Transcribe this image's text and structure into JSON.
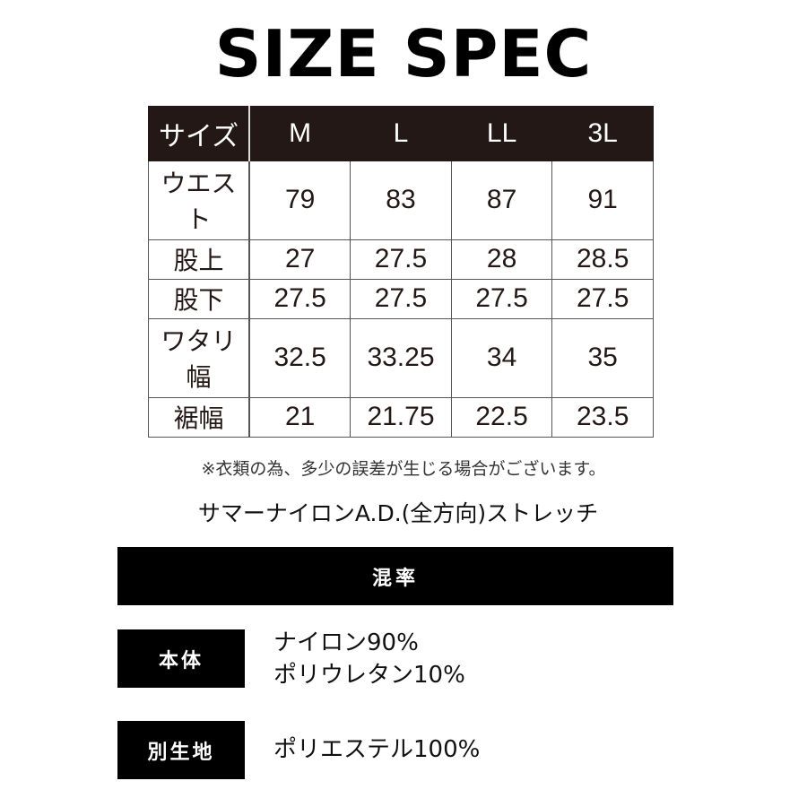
{
  "title": "SIZE SPEC",
  "size_table": {
    "header": [
      "サイズ",
      "M",
      "L",
      "LL",
      "3L"
    ],
    "rows": [
      {
        "label": "ウエスト",
        "values": [
          "79",
          "83",
          "87",
          "91"
        ]
      },
      {
        "label": "股上",
        "values": [
          "27",
          "27.5",
          "28",
          "28.5"
        ]
      },
      {
        "label": "股下",
        "values": [
          "27.5",
          "27.5",
          "27.5",
          "27.5"
        ]
      },
      {
        "label": "ワタリ幅",
        "values": [
          "32.5",
          "33.25",
          "34",
          "35"
        ]
      },
      {
        "label": "裾幅",
        "values": [
          "21",
          "21.75",
          "22.5",
          "23.5"
        ]
      }
    ]
  },
  "note": "※衣類の為、多少の誤差が生じる場合がございます。",
  "fabric_name": "サマーナイロンA.D.(全方向)ストレッチ",
  "composition": {
    "heading": "混率",
    "items": [
      {
        "label": "本体",
        "lines": [
          "ナイロン90%",
          "ポリウレタン10%"
        ]
      },
      {
        "label": "別生地",
        "lines": [
          "ポリエステル100%"
        ]
      }
    ]
  },
  "colors": {
    "header_bg": "#231815",
    "text": "#231815"
  }
}
